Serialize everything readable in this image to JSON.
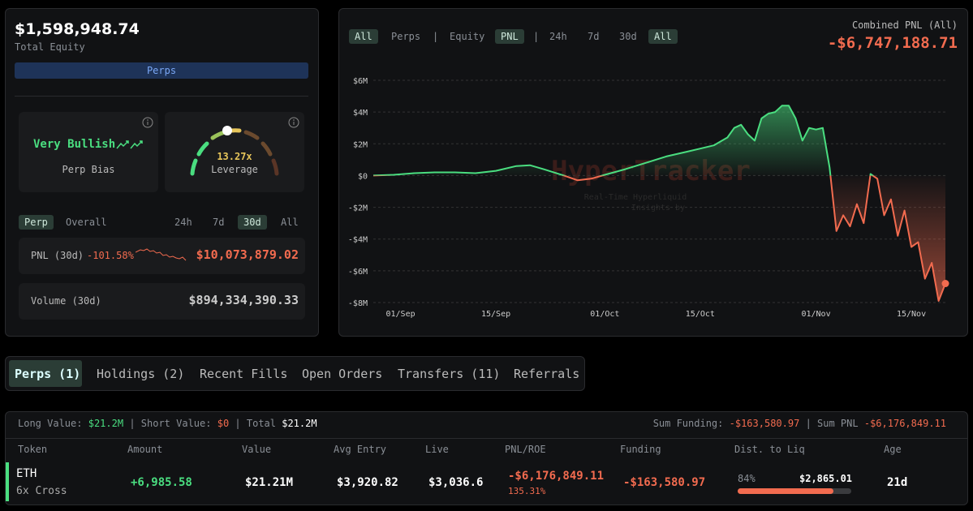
{
  "equity": {
    "value": "$1,598,948.74",
    "label": "Total Equity",
    "tab": "Perps"
  },
  "bias": {
    "label": "Very Bullish",
    "caption": "Perp Bias"
  },
  "leverage": {
    "value": "13.27x",
    "caption": "Leverage"
  },
  "period_tabs": {
    "left": [
      "Perp",
      "Overall"
    ],
    "right": [
      "24h",
      "7d",
      "30d",
      "All"
    ]
  },
  "pnl_row": {
    "label": "PNL (30d)",
    "pct": "-101.58%",
    "value": "$10,073,879.02"
  },
  "volume_row": {
    "label": "Volume (30d)",
    "value": "$894,334,390.33"
  },
  "chart_toolbar": {
    "source": [
      "All",
      "Perps"
    ],
    "metric": [
      "Equity",
      "PNL"
    ],
    "range": [
      "24h",
      "7d",
      "30d",
      "All"
    ]
  },
  "combined": {
    "label": "Combined PNL (All)",
    "value": "-$6,747,188.71"
  },
  "watermark": {
    "title": "HyperTracker",
    "line1": "Real-Time Hyperliquid",
    "line2": "Insights by"
  },
  "chart_data": {
    "type": "line",
    "color_positive": "#4ade80",
    "color_negative": "#f26b4f",
    "grid": true,
    "x": [
      "28/Aug",
      "31/Aug",
      "03/Sep",
      "06/Sep",
      "09/Sep",
      "12/Sep",
      "15/Sep",
      "18/Sep",
      "20/Sep",
      "22/Sep",
      "25/Sep",
      "27/Sep",
      "29/Sep",
      "01/Oct",
      "04/Oct",
      "07/Oct",
      "10/Oct",
      "13/Oct",
      "15/Oct",
      "17/Oct",
      "19/Oct",
      "20/Oct",
      "21/Oct",
      "22/Oct",
      "23/Oct",
      "24/Oct",
      "25/Oct",
      "26/Oct",
      "27/Oct",
      "28/Oct",
      "29/Oct",
      "30/Oct",
      "31/Oct",
      "01/Nov",
      "02/Nov",
      "03/Nov",
      "04/Nov",
      "05/Nov",
      "06/Nov",
      "07/Nov",
      "08/Nov",
      "09/Nov",
      "10/Nov",
      "11/Nov",
      "12/Nov",
      "13/Nov",
      "14/Nov",
      "15/Nov",
      "16/Nov",
      "17/Nov",
      "18/Nov",
      "19/Nov",
      "20/Nov"
    ],
    "values": [
      0,
      50000,
      150000,
      200000,
      200000,
      150000,
      300000,
      600000,
      650000,
      400000,
      0,
      -300000,
      -200000,
      50000,
      400000,
      800000,
      1200000,
      1500000,
      1700000,
      1900000,
      2400000,
      3000000,
      3200000,
      2600000,
      2200000,
      3600000,
      3900000,
      4000000,
      4400000,
      4400000,
      3600000,
      2200000,
      3000000,
      2900000,
      3000000,
      500000,
      -3500000,
      -2500000,
      -3200000,
      -1800000,
      -3000000,
      100000,
      -200000,
      -2500000,
      -1500000,
      -3800000,
      -2200000,
      -4500000,
      -4200000,
      -6500000,
      -5500000,
      -7900000,
      -6800000
    ],
    "xlim": [
      "28/Aug",
      "20/Nov"
    ],
    "xticks": [
      "01/Sep",
      "15/Sep",
      "01/Oct",
      "15/Oct",
      "01/Nov",
      "15/Nov"
    ],
    "ylim": [
      -8000000,
      6000000
    ],
    "yticks": [
      {
        "value": 6000000,
        "label": "$6M"
      },
      {
        "value": 4000000,
        "label": "$4M"
      },
      {
        "value": 2000000,
        "label": "$2M"
      },
      {
        "value": 0,
        "label": "$0"
      },
      {
        "value": -2000000,
        "label": "-$2M"
      },
      {
        "value": -4000000,
        "label": "-$4M"
      },
      {
        "value": -6000000,
        "label": "-$6M"
      },
      {
        "value": -8000000,
        "label": "-$8M"
      }
    ]
  },
  "tabs": [
    "Perps (1)",
    "Holdings (2)",
    "Recent Fills",
    "Open Orders",
    "Transfers (11)",
    "Referrals"
  ],
  "summary": {
    "long_label": "Long Value:",
    "long": "$21.2M",
    "short_label": "Short Value:",
    "short": "$0",
    "total_label": "Total",
    "total": "$21.2M",
    "funding_label": "Sum Funding:",
    "funding": "-$163,580.97",
    "pnl_label": "Sum PNL",
    "pnl": "-$6,176,849.11"
  },
  "table": {
    "columns": [
      "Token",
      "Amount",
      "Value",
      "Avg Entry",
      "Live",
      "PNL/ROE",
      "Funding",
      "Dist. to Liq",
      "Age"
    ],
    "rows": [
      {
        "token": "ETH",
        "mode": "6x Cross",
        "amount": "+6,985.58",
        "value": "$21.21M",
        "entry": "$3,920.82",
        "live": "$3,036.6",
        "pnl": "-$6,176,849.11",
        "roe": "135.31%",
        "funding": "-$163,580.97",
        "dist_pct": "84%",
        "liq": "$2,865.01",
        "age": "21d"
      }
    ]
  }
}
